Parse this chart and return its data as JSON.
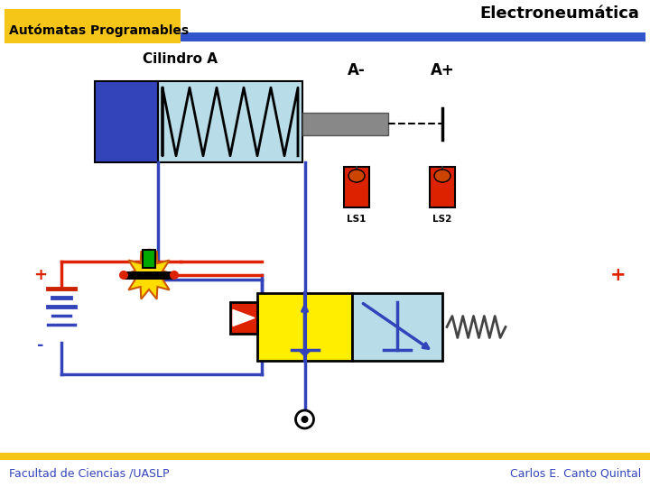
{
  "title": "Electroneumática",
  "subtitle": "Autómatas Programables",
  "cylinder_label": "Cilindro A",
  "label_aminus": "A-",
  "label_aplus": "A+",
  "label_ls1": "LS1",
  "label_ls2": "LS2",
  "label_plus_left": "+",
  "label_minus_left": "-",
  "label_plus_right": "+",
  "footer_left": "Facultad de Ciencias /UASLP",
  "footer_right": "Carlos E. Canto Quintal",
  "bg_color": "#ffffff",
  "header_bar_color": "#f5c518",
  "header_bar2_color": "#3355cc",
  "footer_bar_color": "#f5c518",
  "blue_dark": "#3344bb",
  "blue_medium": "#4455cc",
  "blue_light": "#b8dce8",
  "yellow": "#ffee00",
  "red_bright": "#dd2200",
  "red_dark": "#bb1100",
  "green": "#00aa00",
  "gray_rod": "#888888",
  "orange_red": "#cc3300"
}
